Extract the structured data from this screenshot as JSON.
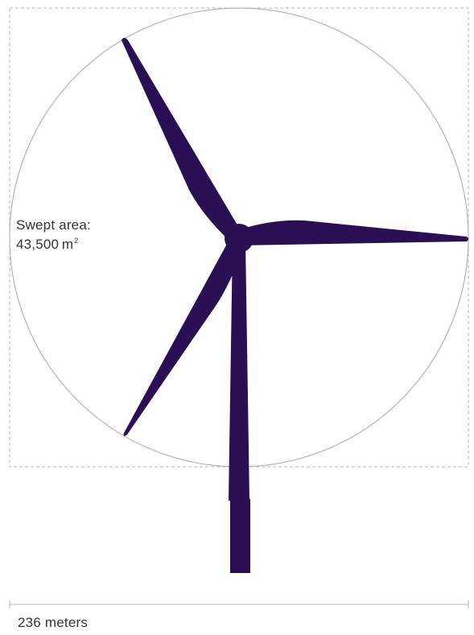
{
  "swept_area": {
    "title": "Swept area:",
    "value": "43,500",
    "unit": "m",
    "unit_superscript": "2"
  },
  "rotor_diameter_label": "236 meters",
  "colors": {
    "turbine": "#2a0f55",
    "circle": "#b5b5b5",
    "bounding_box": "#b5b5b5",
    "text": "#333333"
  }
}
